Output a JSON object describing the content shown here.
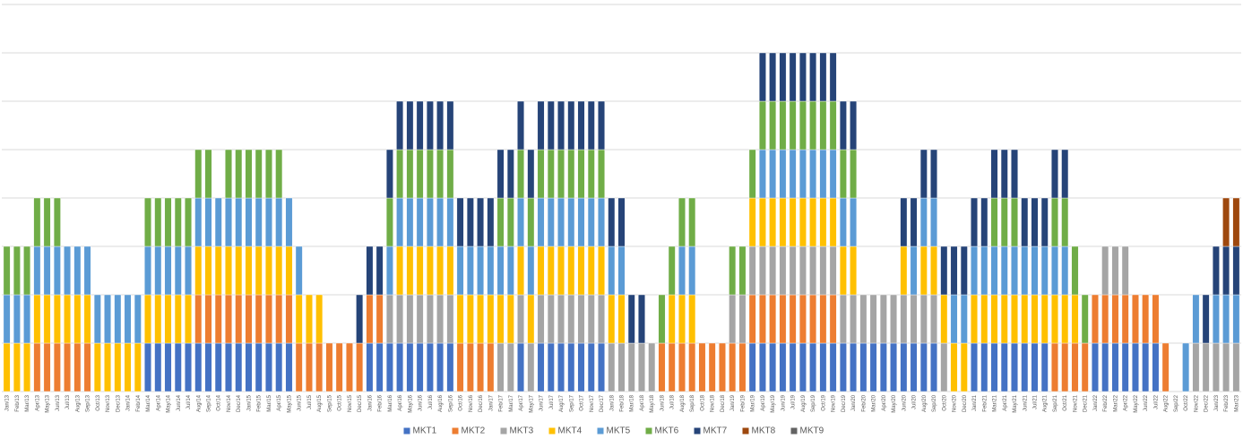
{
  "chart_data": {
    "type": "stacked-bar",
    "categories": [
      "Jan/13",
      "Feb/13",
      "Mar/13",
      "Apr/13",
      "May/13",
      "Jun/13",
      "Jul/13",
      "Aug/13",
      "Sep/13",
      "Oct/13",
      "Nov/13",
      "Dec/13",
      "Jan/14",
      "Feb/14",
      "Mar/14",
      "Apr/14",
      "May/14",
      "Jun/14",
      "Jul/14",
      "Aug/14",
      "Sep/14",
      "Oct/14",
      "Nov/14",
      "Dec/14",
      "Jan/15",
      "Feb/15",
      "Mar/15",
      "Apr/15",
      "May/15",
      "Jun/15",
      "Jul/15",
      "Aug/15",
      "Sep/15",
      "Oct/15",
      "Nov/15",
      "Dec/15",
      "Jan/16",
      "Feb/16",
      "Mar/16",
      "Apr/16",
      "May/16",
      "Jun/16",
      "Jul/16",
      "Aug/16",
      "Sep/16",
      "Oct/16",
      "Nov/16",
      "Dec/16",
      "Jan/17",
      "Feb/17",
      "Mar/17",
      "Apr/17",
      "May/17",
      "Jun/17",
      "Jul/17",
      "Aug/17",
      "Sep/17",
      "Oct/17",
      "Nov/17",
      "Dec/17",
      "Jan/18",
      "Feb/18",
      "Mar/18",
      "Apr/18",
      "May/18",
      "Jun/18",
      "Jul/18",
      "Aug/18",
      "Sep/18",
      "Oct/18",
      "Nov/18",
      "Dec/18",
      "Jan/19",
      "Feb/19",
      "Mar/19",
      "Apr/19",
      "May/19",
      "Jun/19",
      "Jul/19",
      "Aug/19",
      "Sep/19",
      "Oct/19",
      "Nov/19",
      "Dec/19",
      "Jan/20",
      "Feb/20",
      "Mar/20",
      "Apr/20",
      "May/20",
      "Jun/20",
      "Jul/20",
      "Aug/20",
      "Sep/20",
      "Oct/20",
      "Nov/20",
      "Dec/20",
      "Jan/21",
      "Feb/21",
      "Mar/21",
      "Apr/21",
      "May/21",
      "Jun/21",
      "Jul/21",
      "Aug/21",
      "Sep/21",
      "Oct/21",
      "Nov/21",
      "Dec/21",
      "Jan/22",
      "Feb/22",
      "Mar/22",
      "Apr/22",
      "May/22",
      "Jun/22",
      "Jul/22",
      "Aug/22",
      "Sep/22",
      "Oct/22",
      "Nov/22",
      "Dec/22",
      "Jan/23",
      "Feb/23",
      "Mar/23"
    ],
    "series": [
      {
        "name": "MKT1",
        "color": "#4472c4",
        "values": [
          0,
          0,
          0,
          0,
          0,
          0,
          0,
          0,
          0,
          0,
          0,
          0,
          0,
          0,
          1,
          1,
          1,
          1,
          1,
          1,
          1,
          1,
          1,
          1,
          1,
          1,
          1,
          1,
          1,
          0,
          0,
          0,
          0,
          0,
          0,
          0,
          1,
          1,
          1,
          1,
          1,
          1,
          1,
          1,
          1,
          0,
          0,
          0,
          0,
          0,
          0,
          1,
          0,
          1,
          1,
          1,
          1,
          1,
          1,
          1,
          0,
          0,
          0,
          0,
          0,
          0,
          0,
          0,
          0,
          0,
          0,
          0,
          0,
          0,
          1,
          1,
          1,
          1,
          1,
          1,
          1,
          1,
          1,
          1,
          1,
          1,
          1,
          1,
          1,
          1,
          1,
          1,
          1,
          0,
          0,
          0,
          1,
          1,
          1,
          1,
          1,
          1,
          1,
          1,
          0,
          0,
          0,
          0,
          1,
          1,
          1,
          1,
          1,
          1,
          1,
          0,
          0,
          0,
          0,
          0,
          0,
          0,
          0
        ]
      },
      {
        "name": "MKT2",
        "color": "#ed7d31",
        "values": [
          0,
          0,
          0,
          1,
          1,
          1,
          1,
          1,
          1,
          0,
          0,
          0,
          0,
          0,
          0,
          0,
          0,
          0,
          0,
          1,
          1,
          1,
          1,
          1,
          1,
          1,
          1,
          1,
          1,
          1,
          1,
          1,
          1,
          1,
          1,
          1,
          1,
          1,
          0,
          0,
          0,
          0,
          0,
          0,
          0,
          1,
          1,
          1,
          1,
          0,
          0,
          0,
          0,
          0,
          0,
          0,
          0,
          0,
          0,
          0,
          0,
          0,
          0,
          0,
          0,
          1,
          1,
          1,
          1,
          1,
          1,
          1,
          1,
          1,
          1,
          1,
          1,
          1,
          1,
          1,
          1,
          1,
          1,
          0,
          0,
          0,
          0,
          0,
          0,
          0,
          0,
          0,
          0,
          0,
          0,
          0,
          0,
          0,
          0,
          0,
          0,
          0,
          0,
          0,
          1,
          1,
          1,
          1,
          1,
          1,
          1,
          1,
          1,
          1,
          1,
          1,
          0,
          0,
          0,
          0,
          0,
          0,
          0
        ]
      },
      {
        "name": "MKT3",
        "color": "#a5a5a5",
        "values": [
          0,
          0,
          0,
          0,
          0,
          0,
          0,
          0,
          0,
          0,
          0,
          0,
          0,
          0,
          0,
          0,
          0,
          0,
          0,
          0,
          0,
          0,
          0,
          0,
          0,
          0,
          0,
          0,
          0,
          0,
          0,
          0,
          0,
          0,
          0,
          0,
          0,
          0,
          1,
          1,
          1,
          1,
          1,
          1,
          1,
          0,
          0,
          0,
          0,
          1,
          1,
          1,
          1,
          1,
          1,
          1,
          1,
          1,
          1,
          1,
          1,
          1,
          1,
          1,
          1,
          0,
          0,
          0,
          0,
          0,
          0,
          0,
          1,
          1,
          1,
          1,
          1,
          1,
          1,
          1,
          1,
          1,
          1,
          1,
          1,
          1,
          1,
          1,
          1,
          1,
          1,
          1,
          1,
          1,
          0,
          0,
          0,
          0,
          0,
          0,
          0,
          0,
          0,
          0,
          0,
          0,
          0,
          0,
          0,
          1,
          1,
          1,
          0,
          0,
          0,
          0,
          0,
          0,
          1,
          1,
          1,
          1,
          1
        ]
      },
      {
        "name": "MKT4",
        "color": "#ffc000",
        "values": [
          1,
          1,
          1,
          1,
          1,
          1,
          1,
          1,
          1,
          1,
          1,
          1,
          1,
          1,
          1,
          1,
          1,
          1,
          1,
          1,
          1,
          1,
          1,
          1,
          1,
          1,
          1,
          1,
          1,
          1,
          1,
          1,
          0,
          0,
          0,
          0,
          0,
          0,
          0,
          1,
          1,
          1,
          1,
          1,
          1,
          1,
          1,
          1,
          1,
          1,
          1,
          1,
          1,
          1,
          1,
          1,
          1,
          1,
          1,
          1,
          1,
          1,
          0,
          0,
          0,
          0,
          1,
          1,
          1,
          0,
          0,
          0,
          0,
          0,
          1,
          1,
          1,
          1,
          1,
          1,
          1,
          1,
          1,
          1,
          1,
          0,
          0,
          0,
          0,
          1,
          0,
          1,
          1,
          1,
          1,
          1,
          1,
          1,
          1,
          1,
          1,
          1,
          1,
          1,
          1,
          1,
          1,
          0,
          0,
          0,
          0,
          0,
          0,
          0,
          0,
          0,
          0,
          0,
          0,
          0,
          0,
          0,
          0
        ]
      },
      {
        "name": "MKT5",
        "color": "#5b9bd5",
        "values": [
          1,
          1,
          1,
          1,
          1,
          1,
          1,
          1,
          1,
          1,
          1,
          1,
          1,
          1,
          1,
          1,
          1,
          1,
          1,
          1,
          1,
          1,
          1,
          1,
          1,
          1,
          1,
          1,
          1,
          1,
          0,
          0,
          0,
          0,
          0,
          0,
          0,
          0,
          1,
          1,
          1,
          1,
          1,
          1,
          1,
          1,
          1,
          1,
          1,
          1,
          1,
          1,
          1,
          1,
          1,
          1,
          1,
          1,
          1,
          1,
          1,
          1,
          0,
          0,
          0,
          0,
          0,
          1,
          1,
          0,
          0,
          0,
          0,
          0,
          0,
          1,
          1,
          1,
          1,
          1,
          1,
          1,
          1,
          1,
          1,
          0,
          0,
          0,
          0,
          0,
          1,
          1,
          1,
          0,
          1,
          1,
          1,
          1,
          1,
          1,
          1,
          1,
          1,
          1,
          1,
          1,
          0,
          0,
          0,
          0,
          0,
          0,
          0,
          0,
          0,
          0,
          0,
          1,
          1,
          0,
          1,
          1,
          1
        ]
      },
      {
        "name": "MKT6",
        "color": "#70ad47",
        "values": [
          1,
          1,
          1,
          1,
          1,
          1,
          0,
          0,
          0,
          0,
          0,
          0,
          0,
          0,
          1,
          1,
          1,
          1,
          1,
          1,
          1,
          0,
          1,
          1,
          1,
          1,
          1,
          1,
          0,
          0,
          0,
          0,
          0,
          0,
          0,
          0,
          0,
          0,
          1,
          1,
          1,
          1,
          1,
          1,
          1,
          0,
          0,
          0,
          0,
          1,
          1,
          1,
          1,
          1,
          1,
          1,
          1,
          1,
          1,
          1,
          0,
          0,
          0,
          0,
          0,
          1,
          1,
          1,
          1,
          0,
          0,
          0,
          1,
          1,
          1,
          1,
          1,
          1,
          1,
          1,
          1,
          1,
          1,
          1,
          1,
          0,
          0,
          0,
          0,
          0,
          0,
          0,
          0,
          0,
          0,
          0,
          0,
          0,
          1,
          1,
          1,
          0,
          0,
          0,
          1,
          1,
          1,
          1,
          0,
          0,
          0,
          0,
          0,
          0,
          0,
          0,
          0,
          0,
          0,
          0,
          0,
          0,
          0
        ]
      },
      {
        "name": "MKT7",
        "color": "#264478",
        "values": [
          0,
          0,
          0,
          0,
          0,
          0,
          0,
          0,
          0,
          0,
          0,
          0,
          0,
          0,
          0,
          0,
          0,
          0,
          0,
          0,
          0,
          0,
          0,
          0,
          0,
          0,
          0,
          0,
          0,
          0,
          0,
          0,
          0,
          0,
          0,
          1,
          1,
          1,
          1,
          1,
          1,
          1,
          1,
          1,
          1,
          1,
          1,
          1,
          1,
          1,
          1,
          1,
          1,
          1,
          1,
          1,
          1,
          1,
          1,
          1,
          1,
          1,
          1,
          1,
          0,
          0,
          0,
          0,
          0,
          0,
          0,
          0,
          0,
          0,
          0,
          1,
          1,
          1,
          1,
          1,
          1,
          1,
          1,
          1,
          1,
          0,
          0,
          0,
          0,
          1,
          1,
          1,
          1,
          1,
          1,
          1,
          1,
          1,
          1,
          1,
          1,
          1,
          1,
          1,
          1,
          1,
          0,
          0,
          0,
          0,
          0,
          0,
          0,
          0,
          0,
          0,
          0,
          0,
          0,
          1,
          1,
          1,
          1
        ]
      },
      {
        "name": "MKT8",
        "color": "#9e480e",
        "values": [
          0,
          0,
          0,
          0,
          0,
          0,
          0,
          0,
          0,
          0,
          0,
          0,
          0,
          0,
          0,
          0,
          0,
          0,
          0,
          0,
          0,
          0,
          0,
          0,
          0,
          0,
          0,
          0,
          0,
          0,
          0,
          0,
          0,
          0,
          0,
          0,
          0,
          0,
          0,
          0,
          0,
          0,
          0,
          0,
          0,
          0,
          0,
          0,
          0,
          0,
          0,
          0,
          0,
          0,
          0,
          0,
          0,
          0,
          0,
          0,
          0,
          0,
          0,
          0,
          0,
          0,
          0,
          0,
          0,
          0,
          0,
          0,
          0,
          0,
          0,
          0,
          0,
          0,
          0,
          0,
          0,
          0,
          0,
          0,
          0,
          0,
          0,
          0,
          0,
          0,
          0,
          0,
          0,
          0,
          0,
          0,
          0,
          0,
          0,
          0,
          0,
          0,
          0,
          0,
          0,
          0,
          0,
          0,
          0,
          0,
          0,
          0,
          0,
          0,
          0,
          0,
          0,
          0,
          0,
          0,
          0,
          1,
          1
        ]
      },
      {
        "name": "MKT9",
        "color": "#636363",
        "values": [
          0,
          0,
          0,
          0,
          0,
          0,
          0,
          0,
          0,
          0,
          0,
          0,
          0,
          0,
          0,
          0,
          0,
          0,
          0,
          0,
          0,
          0,
          0,
          0,
          0,
          0,
          0,
          0,
          0,
          0,
          0,
          0,
          0,
          0,
          0,
          0,
          0,
          0,
          0,
          0,
          0,
          0,
          0,
          0,
          0,
          0,
          0,
          0,
          0,
          0,
          0,
          0,
          0,
          0,
          0,
          0,
          0,
          0,
          0,
          0,
          0,
          0,
          0,
          0,
          0,
          0,
          0,
          0,
          0,
          0,
          0,
          0,
          0,
          0,
          0,
          0,
          0,
          0,
          0,
          0,
          0,
          0,
          0,
          0,
          0,
          0,
          0,
          0,
          0,
          0,
          0,
          0,
          0,
          0,
          0,
          0,
          0,
          0,
          0,
          0,
          0,
          0,
          0,
          0,
          0,
          0,
          0,
          0,
          0,
          0,
          0,
          0,
          0,
          0,
          0,
          0,
          0,
          0,
          0,
          0,
          0,
          0,
          0
        ]
      }
    ],
    "ylim": [
      0,
      8
    ],
    "yticks": [
      0,
      1,
      2,
      3,
      4,
      5,
      6,
      7,
      8
    ],
    "grid": true,
    "legend": "bottom"
  }
}
